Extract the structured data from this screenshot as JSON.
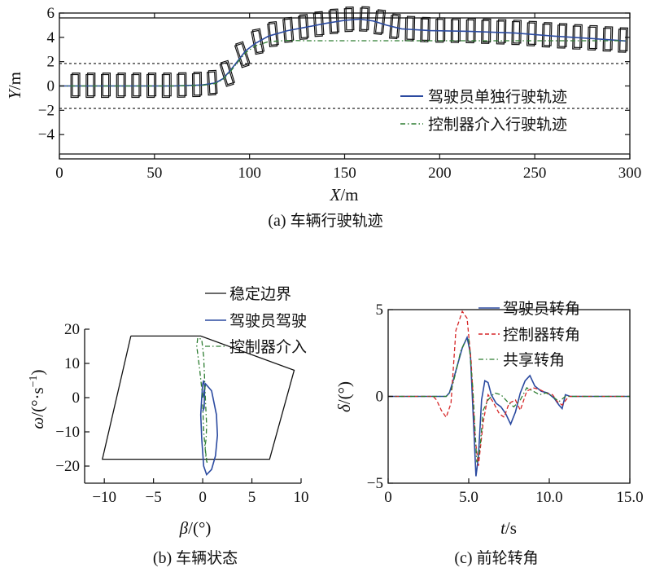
{
  "chart_data": [
    {
      "id": "a",
      "type": "line",
      "caption_prefix": "(a) ",
      "caption_text": "车辆行驶轨迹",
      "xlabel_var": "X",
      "xlabel_unit": "/m",
      "ylabel_var": "Y",
      "ylabel_unit": "/m",
      "xlim": [
        0,
        300
      ],
      "ylim": [
        -6,
        6
      ],
      "xticks": [
        0,
        50,
        100,
        150,
        200,
        250,
        300
      ],
      "yticks": [
        -4,
        -2,
        0,
        2,
        4,
        6
      ],
      "lane_edges": [
        5.6,
        -5.6
      ],
      "lane_dividers": [
        1.85,
        -1.85
      ],
      "legend": [
        "驾驶员单独行驶轨迹",
        "控制器介入行驶轨迹"
      ],
      "series": [
        {
          "name": "驾驶员单独行驶轨迹",
          "color": "#2b4aa0",
          "style": "solid",
          "x": [
            0,
            20,
            40,
            60,
            75,
            82,
            86,
            90,
            94,
            98,
            103,
            110,
            120,
            130,
            140,
            150,
            158,
            165,
            172,
            180,
            195,
            215,
            240,
            260,
            280,
            298
          ],
          "y": [
            0,
            0,
            0,
            0,
            0.08,
            0.25,
            0.6,
            1.3,
            2.1,
            2.9,
            3.5,
            4.1,
            4.55,
            4.85,
            5.15,
            5.4,
            5.5,
            5.35,
            5.0,
            4.7,
            4.55,
            4.5,
            4.35,
            4.1,
            3.9,
            3.7
          ]
        },
        {
          "name": "控制器介入行驶轨迹",
          "color": "#2e7d32",
          "style": "dashdot",
          "x": [
            0,
            20,
            40,
            60,
            75,
            82,
            86,
            90,
            94,
            98,
            103,
            110,
            120,
            130,
            140,
            150,
            165,
            180,
            200,
            220,
            250,
            280,
            298
          ],
          "y": [
            0,
            0,
            0,
            0,
            0.05,
            0.2,
            0.55,
            1.2,
            2.0,
            2.75,
            3.3,
            3.65,
            3.75,
            3.72,
            3.72,
            3.72,
            3.72,
            3.72,
            3.72,
            3.72,
            3.72,
            3.72,
            3.72
          ]
        }
      ]
    },
    {
      "id": "b",
      "type": "line",
      "caption_prefix": "(b) ",
      "caption_text": "车辆状态",
      "xlabel_var": "β",
      "xlabel_unit": "/(°)",
      "ylabel_var": "ω",
      "ylabel_unit": "/(°·s",
      "ylabel_sup": "−1",
      "ylabel_close": ")",
      "xlim": [
        -12,
        10
      ],
      "ylim": [
        -25,
        20
      ],
      "xticks": [
        -10,
        -5,
        0,
        5,
        10
      ],
      "yticks": [
        -20,
        -10,
        0,
        10,
        20
      ],
      "legend": [
        "稳定边界",
        "驾驶员驾驶",
        "控制器介入"
      ],
      "stability_boundary": {
        "x": [
          -7.3,
          -0.2,
          9.3,
          6.8,
          -10.2,
          -7.3
        ],
        "y": [
          18,
          18,
          8,
          -18,
          -18,
          18
        ]
      },
      "series": [
        {
          "name": "驾驶员驾驶",
          "color": "#2b4aa0",
          "style": "solid",
          "x": [
            0,
            0.3,
            0.9,
            1.4,
            1.5,
            1.3,
            0.9,
            0.4,
            0.1,
            -0.1,
            -0.2,
            -0.1,
            0,
            0.1,
            0.2,
            0.15,
            0
          ],
          "y": [
            0,
            4,
            2,
            -5,
            -11,
            -17,
            -21,
            -22.5,
            -20,
            -12,
            -5,
            0,
            4,
            5,
            3,
            -3,
            -4
          ]
        },
        {
          "name": "控制器介入",
          "color": "#2e7d32",
          "style": "dashdot",
          "x": [
            0,
            -0.3,
            -0.6,
            -0.5,
            -0.1,
            0.1,
            0.2,
            0.3,
            0.4,
            0.35,
            0.25,
            0.3,
            0.4,
            0.45,
            0.35,
            0.1,
            0
          ],
          "y": [
            0,
            8,
            15,
            17.5,
            17,
            12,
            5,
            -2,
            -8,
            -12,
            -14,
            -16,
            -18,
            -19,
            -18,
            -10,
            -2
          ]
        }
      ]
    },
    {
      "id": "c",
      "type": "line",
      "caption_prefix": "(c) ",
      "caption_text": "前轮转角",
      "xlabel_var": "t",
      "xlabel_unit": "/s",
      "ylabel_var": "δ",
      "ylabel_unit": "/(°)",
      "xlim": [
        0,
        15
      ],
      "ylim": [
        -5,
        5
      ],
      "xticks": [
        0,
        5.0,
        10.0,
        15.0
      ],
      "xtick_labels": [
        "0",
        "5.0",
        "10.0",
        "15.0"
      ],
      "yticks": [
        -5,
        0,
        5
      ],
      "legend": [
        "驾驶员转角",
        "控制器转角",
        "共享转角"
      ],
      "series": [
        {
          "name": "驾驶员转角",
          "color": "#2b4aa0",
          "style": "solid",
          "x": [
            0,
            3.6,
            3.8,
            4.0,
            4.3,
            4.6,
            4.9,
            5.1,
            5.3,
            5.45,
            5.6,
            5.8,
            6.0,
            6.2,
            6.4,
            6.7,
            7.0,
            7.3,
            7.6,
            7.9,
            8.2,
            8.5,
            8.8,
            9.1,
            9.5,
            9.9,
            10.3,
            10.6,
            10.8,
            11.0,
            11.3,
            15
          ],
          "y": [
            0,
            0,
            0.2,
            0.8,
            1.8,
            2.8,
            3.4,
            2.5,
            -1.5,
            -4.6,
            -3.5,
            -0.2,
            0.9,
            0.8,
            0.1,
            -0.4,
            -0.6,
            -1.0,
            -1.6,
            -0.9,
            0.2,
            0.9,
            1.2,
            0.6,
            0.3,
            0.2,
            -0.1,
            -0.5,
            -0.7,
            0.1,
            0,
            0
          ]
        },
        {
          "name": "控制器转角",
          "color": "#d62728",
          "style": "dashed",
          "x": [
            0,
            2.8,
            3.0,
            3.3,
            3.6,
            3.9,
            4.2,
            4.6,
            4.9,
            5.15,
            5.4,
            5.6,
            5.9,
            6.2,
            6.5,
            6.9,
            7.2,
            7.5,
            7.9,
            8.2,
            8.6,
            9.0,
            9.4,
            9.8,
            10.2,
            10.5,
            10.8,
            11.2,
            15
          ],
          "y": [
            0,
            0,
            -0.2,
            -0.8,
            -1.2,
            -0.4,
            3.8,
            4.9,
            4.5,
            2.0,
            -2.4,
            -4.0,
            -1.5,
            0.1,
            -0.3,
            -1.0,
            -1.2,
            -0.4,
            -0.2,
            -0.8,
            0.3,
            0.5,
            0.4,
            0.2,
            0.1,
            -0.3,
            -0.5,
            0,
            0
          ]
        },
        {
          "name": "共享转角",
          "color": "#2e7d32",
          "style": "dashdot",
          "x": [
            0,
            3.6,
            3.9,
            4.2,
            4.5,
            4.8,
            5.0,
            5.25,
            5.5,
            5.7,
            5.9,
            6.2,
            6.6,
            7.0,
            7.4,
            7.8,
            8.2,
            8.6,
            9.0,
            9.4,
            9.8,
            10.2,
            10.6,
            11.0,
            15
          ],
          "y": [
            0,
            0,
            0.3,
            1.4,
            2.6,
            3.2,
            3.3,
            0.5,
            -3.8,
            -3.0,
            -0.8,
            -0.2,
            0.2,
            0.1,
            -0.3,
            -0.6,
            -0.2,
            0.5,
            0.3,
            0.1,
            0.2,
            0,
            -0.3,
            0,
            0
          ]
        }
      ]
    }
  ]
}
